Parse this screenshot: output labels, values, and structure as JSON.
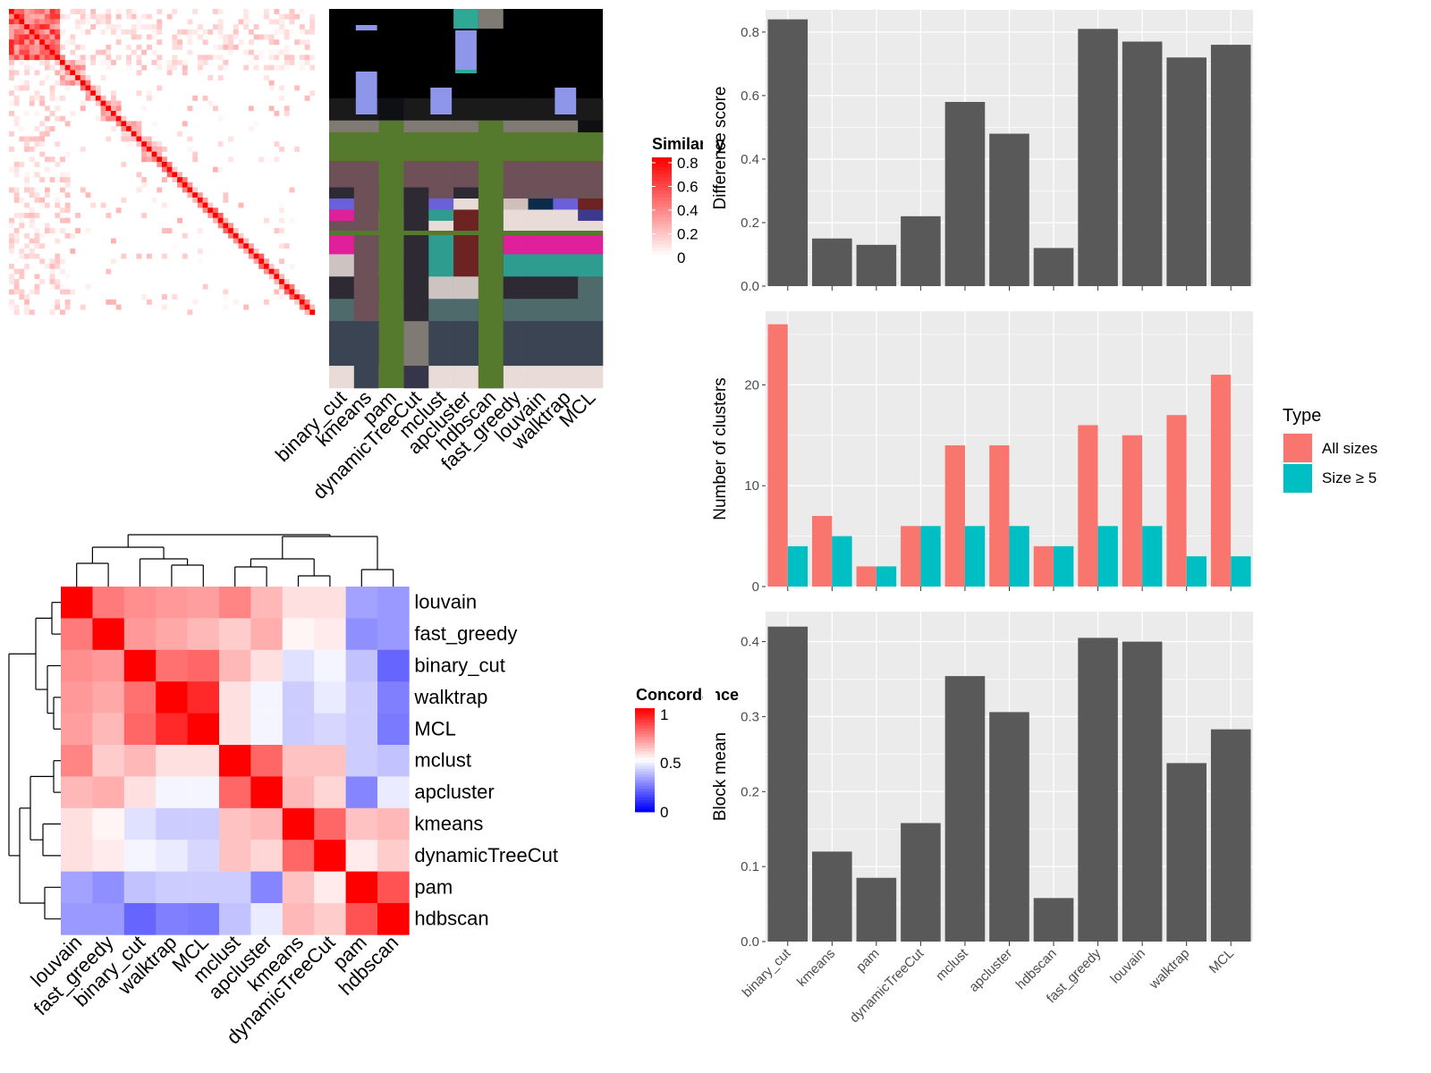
{
  "colors": {
    "panel_bg": "#EBEBEB",
    "grid": "#FFFFFF",
    "bar_dark": "#595959",
    "all_sizes": "#F8766D",
    "size_ge5": "#00BFC4",
    "tree_cut_green": "#557A2E"
  },
  "chart_data": [
    {
      "id": "similarity_heatmap",
      "type": "heatmap",
      "title": "",
      "legend_title": "Similarity",
      "legend_ticks": [
        "0.8",
        "0.6",
        "0.4",
        "0.2",
        "0"
      ],
      "scale": [
        "#FFFFFF",
        "#FF0000"
      ],
      "value_range": [
        0,
        0.8
      ],
      "size": 60,
      "diagonal_value": 0.85,
      "note_values_estimated": true
    },
    {
      "id": "cluster_assignment_annotation",
      "type": "heatmap",
      "title": "",
      "columns": [
        "binary_cut",
        "kmeans",
        "pam",
        "dynamicTreeCut",
        "mclust",
        "apcluster",
        "hdbscan",
        "fast_greedy",
        "louvain",
        "walktrap",
        "MCL"
      ]
    },
    {
      "id": "concordance_heatmap",
      "type": "heatmap",
      "title": "",
      "legend_title": "Concordance",
      "legend_ticks": [
        "1",
        "0.5",
        "0"
      ],
      "rows": [
        "louvain",
        "fast_greedy",
        "binary_cut",
        "walktrap",
        "MCL",
        "mclust",
        "apcluster",
        "kmeans",
        "dynamicTreeCut",
        "pam",
        "hdbscan"
      ],
      "cols": [
        "louvain",
        "fast_greedy",
        "binary_cut",
        "walktrap",
        "MCL",
        "mclust",
        "apcluster",
        "kmeans",
        "dynamicTreeCut",
        "pam",
        "hdbscan"
      ],
      "values": [
        [
          1.0,
          0.76,
          0.72,
          0.7,
          0.69,
          0.74,
          0.64,
          0.56,
          0.56,
          0.32,
          0.3
        ],
        [
          0.76,
          1.0,
          0.7,
          0.67,
          0.64,
          0.6,
          0.66,
          0.52,
          0.54,
          0.28,
          0.3
        ],
        [
          0.72,
          0.7,
          1.0,
          0.78,
          0.8,
          0.64,
          0.56,
          0.44,
          0.48,
          0.38,
          0.2
        ],
        [
          0.7,
          0.67,
          0.78,
          1.0,
          0.92,
          0.56,
          0.48,
          0.4,
          0.46,
          0.4,
          0.25
        ],
        [
          0.69,
          0.64,
          0.8,
          0.92,
          1.0,
          0.56,
          0.48,
          0.4,
          0.42,
          0.4,
          0.24
        ],
        [
          0.74,
          0.6,
          0.64,
          0.56,
          0.56,
          1.0,
          0.8,
          0.62,
          0.62,
          0.4,
          0.38
        ],
        [
          0.64,
          0.66,
          0.56,
          0.48,
          0.48,
          0.8,
          1.0,
          0.64,
          0.58,
          0.26,
          0.46
        ],
        [
          0.56,
          0.52,
          0.44,
          0.4,
          0.4,
          0.62,
          0.64,
          1.0,
          0.8,
          0.62,
          0.64
        ],
        [
          0.56,
          0.54,
          0.48,
          0.46,
          0.42,
          0.62,
          0.58,
          0.8,
          1.0,
          0.54,
          0.6
        ],
        [
          0.32,
          0.28,
          0.38,
          0.4,
          0.4,
          0.4,
          0.26,
          0.62,
          0.54,
          1.0,
          0.84
        ],
        [
          0.3,
          0.3,
          0.2,
          0.25,
          0.24,
          0.38,
          0.46,
          0.64,
          0.6,
          0.84,
          1.0
        ]
      ]
    },
    {
      "id": "difference_score",
      "type": "bar",
      "title": "",
      "xlabel": "",
      "ylabel": "Difference score",
      "categories": [
        "binary_cut",
        "kmeans",
        "pam",
        "dynamicTreeCut",
        "mclust",
        "apcluster",
        "hdbscan",
        "fast_greedy",
        "louvain",
        "walktrap",
        "MCL"
      ],
      "values": [
        0.84,
        0.15,
        0.13,
        0.22,
        0.58,
        0.48,
        0.12,
        0.81,
        0.77,
        0.72,
        0.76
      ],
      "ylim": [
        0,
        0.87
      ],
      "yticks": [
        0,
        0.2,
        0.4,
        0.6,
        0.8
      ],
      "ytick_labels": [
        "0.0",
        "0.2",
        "0.4",
        "0.6",
        "0.8"
      ],
      "grid": true
    },
    {
      "id": "number_of_clusters",
      "type": "bar",
      "title": "",
      "xlabel": "",
      "ylabel": "Number of clusters",
      "categories": [
        "binary_cut",
        "kmeans",
        "pam",
        "dynamicTreeCut",
        "mclust",
        "apcluster",
        "hdbscan",
        "fast_greedy",
        "louvain",
        "walktrap",
        "MCL"
      ],
      "series": [
        {
          "name": "All sizes",
          "values": [
            26,
            7,
            2,
            6,
            14,
            14,
            4,
            16,
            15,
            17,
            21
          ]
        },
        {
          "name": "Size ≥ 5",
          "values": [
            4,
            5,
            2,
            6,
            6,
            6,
            4,
            6,
            6,
            3,
            3
          ]
        }
      ],
      "ylim": [
        0,
        27.3
      ],
      "yticks": [
        0,
        10,
        20
      ],
      "ytick_labels": [
        "0",
        "10",
        "20"
      ],
      "legend_title": "Type",
      "legend_position": "right",
      "grid": true
    },
    {
      "id": "block_mean",
      "type": "bar",
      "title": "",
      "xlabel": "",
      "ylabel": "Block mean",
      "categories": [
        "binary_cut",
        "kmeans",
        "pam",
        "dynamicTreeCut",
        "mclust",
        "apcluster",
        "hdbscan",
        "fast_greedy",
        "louvain",
        "walktrap",
        "MCL"
      ],
      "values": [
        0.42,
        0.12,
        0.085,
        0.158,
        0.354,
        0.306,
        0.058,
        0.405,
        0.4,
        0.238,
        0.283
      ],
      "ylim": [
        0,
        0.44
      ],
      "yticks": [
        0,
        0.1,
        0.2,
        0.3,
        0.4
      ],
      "ytick_labels": [
        "0.0",
        "0.1",
        "0.2",
        "0.3",
        "0.4"
      ],
      "grid": true
    }
  ]
}
